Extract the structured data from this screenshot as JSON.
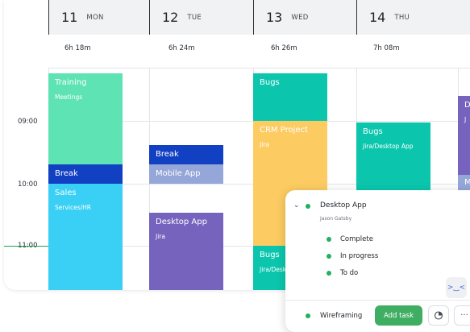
{
  "days": [
    {
      "num": "11",
      "name": "MON",
      "hours": "6h 18m"
    },
    {
      "num": "12",
      "name": "TUE",
      "hours": "6h 24m"
    },
    {
      "num": "13",
      "name": "WED",
      "hours": "6h 26m"
    },
    {
      "num": "14",
      "name": "THU",
      "hours": "7h 08m"
    }
  ],
  "times": [
    "09:00",
    "10:00",
    "11:00"
  ],
  "events": {
    "mon_training": {
      "title": "Training",
      "subtitle": "Meetings",
      "color": "#5ee3b4"
    },
    "mon_break": {
      "title": "Break",
      "color": "#1240c2"
    },
    "mon_sales": {
      "title": "Sales",
      "subtitle": "Services/HR",
      "color": "#3ad0f6"
    },
    "tue_break": {
      "title": "Break",
      "color": "#1240c2"
    },
    "tue_mobile": {
      "title": "Mobile App",
      "color": "#95a7d9"
    },
    "tue_desktop": {
      "title": "Desktop App",
      "subtitle": "Jira",
      "color": "#7663bd"
    },
    "wed_bugs1": {
      "title": "Bugs",
      "color": "#0bc6ad"
    },
    "wed_crm": {
      "title": "CRM Project",
      "subtitle": "Jira",
      "color": "#fccc62"
    },
    "wed_bugs2": {
      "title": "Bugs",
      "subtitle": "Jira/Desktop",
      "color": "#0bc6ad"
    },
    "thu_bugs": {
      "title": "Bugs",
      "subtitle": "Jira/Desktop App",
      "color": "#0bc6ad"
    },
    "fri_partial": {
      "title": "D",
      "subtitle": "J",
      "color": "#7663bd"
    },
    "fri_partial2": {
      "title": "M",
      "color": "#95a7d9"
    }
  },
  "popup": {
    "title": "Desktop App",
    "owner": "Jason Gatsby",
    "subtasks": [
      "Complete",
      "In progress",
      "To do"
    ],
    "footer_task": "Wireframing",
    "add_task_label": "Add task",
    "more_label": "···",
    "mascot_face": ">‿<",
    "status_color": "#22b15e"
  }
}
